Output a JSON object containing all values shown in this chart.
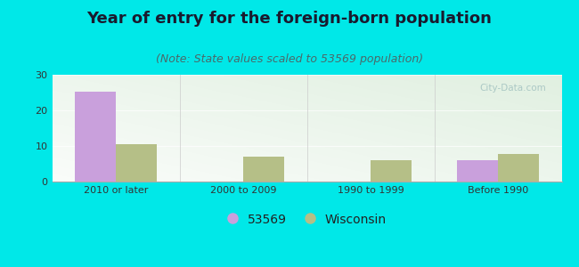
{
  "title": "Year of entry for the foreign-born population",
  "subtitle": "(Note: State values scaled to 53569 population)",
  "categories": [
    "2010 or later",
    "2000 to 2009",
    "1990 to 1999",
    "Before 1990"
  ],
  "series_53569": [
    25.3,
    0,
    0,
    6.0
  ],
  "series_wisconsin": [
    10.5,
    7.0,
    6.0,
    7.7
  ],
  "color_53569": "#c9a0dc",
  "color_wisconsin": "#b5bf87",
  "background_color": "#00e8e8",
  "ylim": [
    0,
    30
  ],
  "yticks": [
    0,
    10,
    20,
    30
  ],
  "bar_width": 0.32,
  "legend_label_53569": "53569",
  "legend_label_wisconsin": "Wisconsin",
  "title_fontsize": 13,
  "subtitle_fontsize": 9,
  "tick_fontsize": 8,
  "legend_fontsize": 10,
  "watermark": "City-Data.com",
  "title_color": "#1a1a2e",
  "subtitle_color": "#4a6a6a"
}
